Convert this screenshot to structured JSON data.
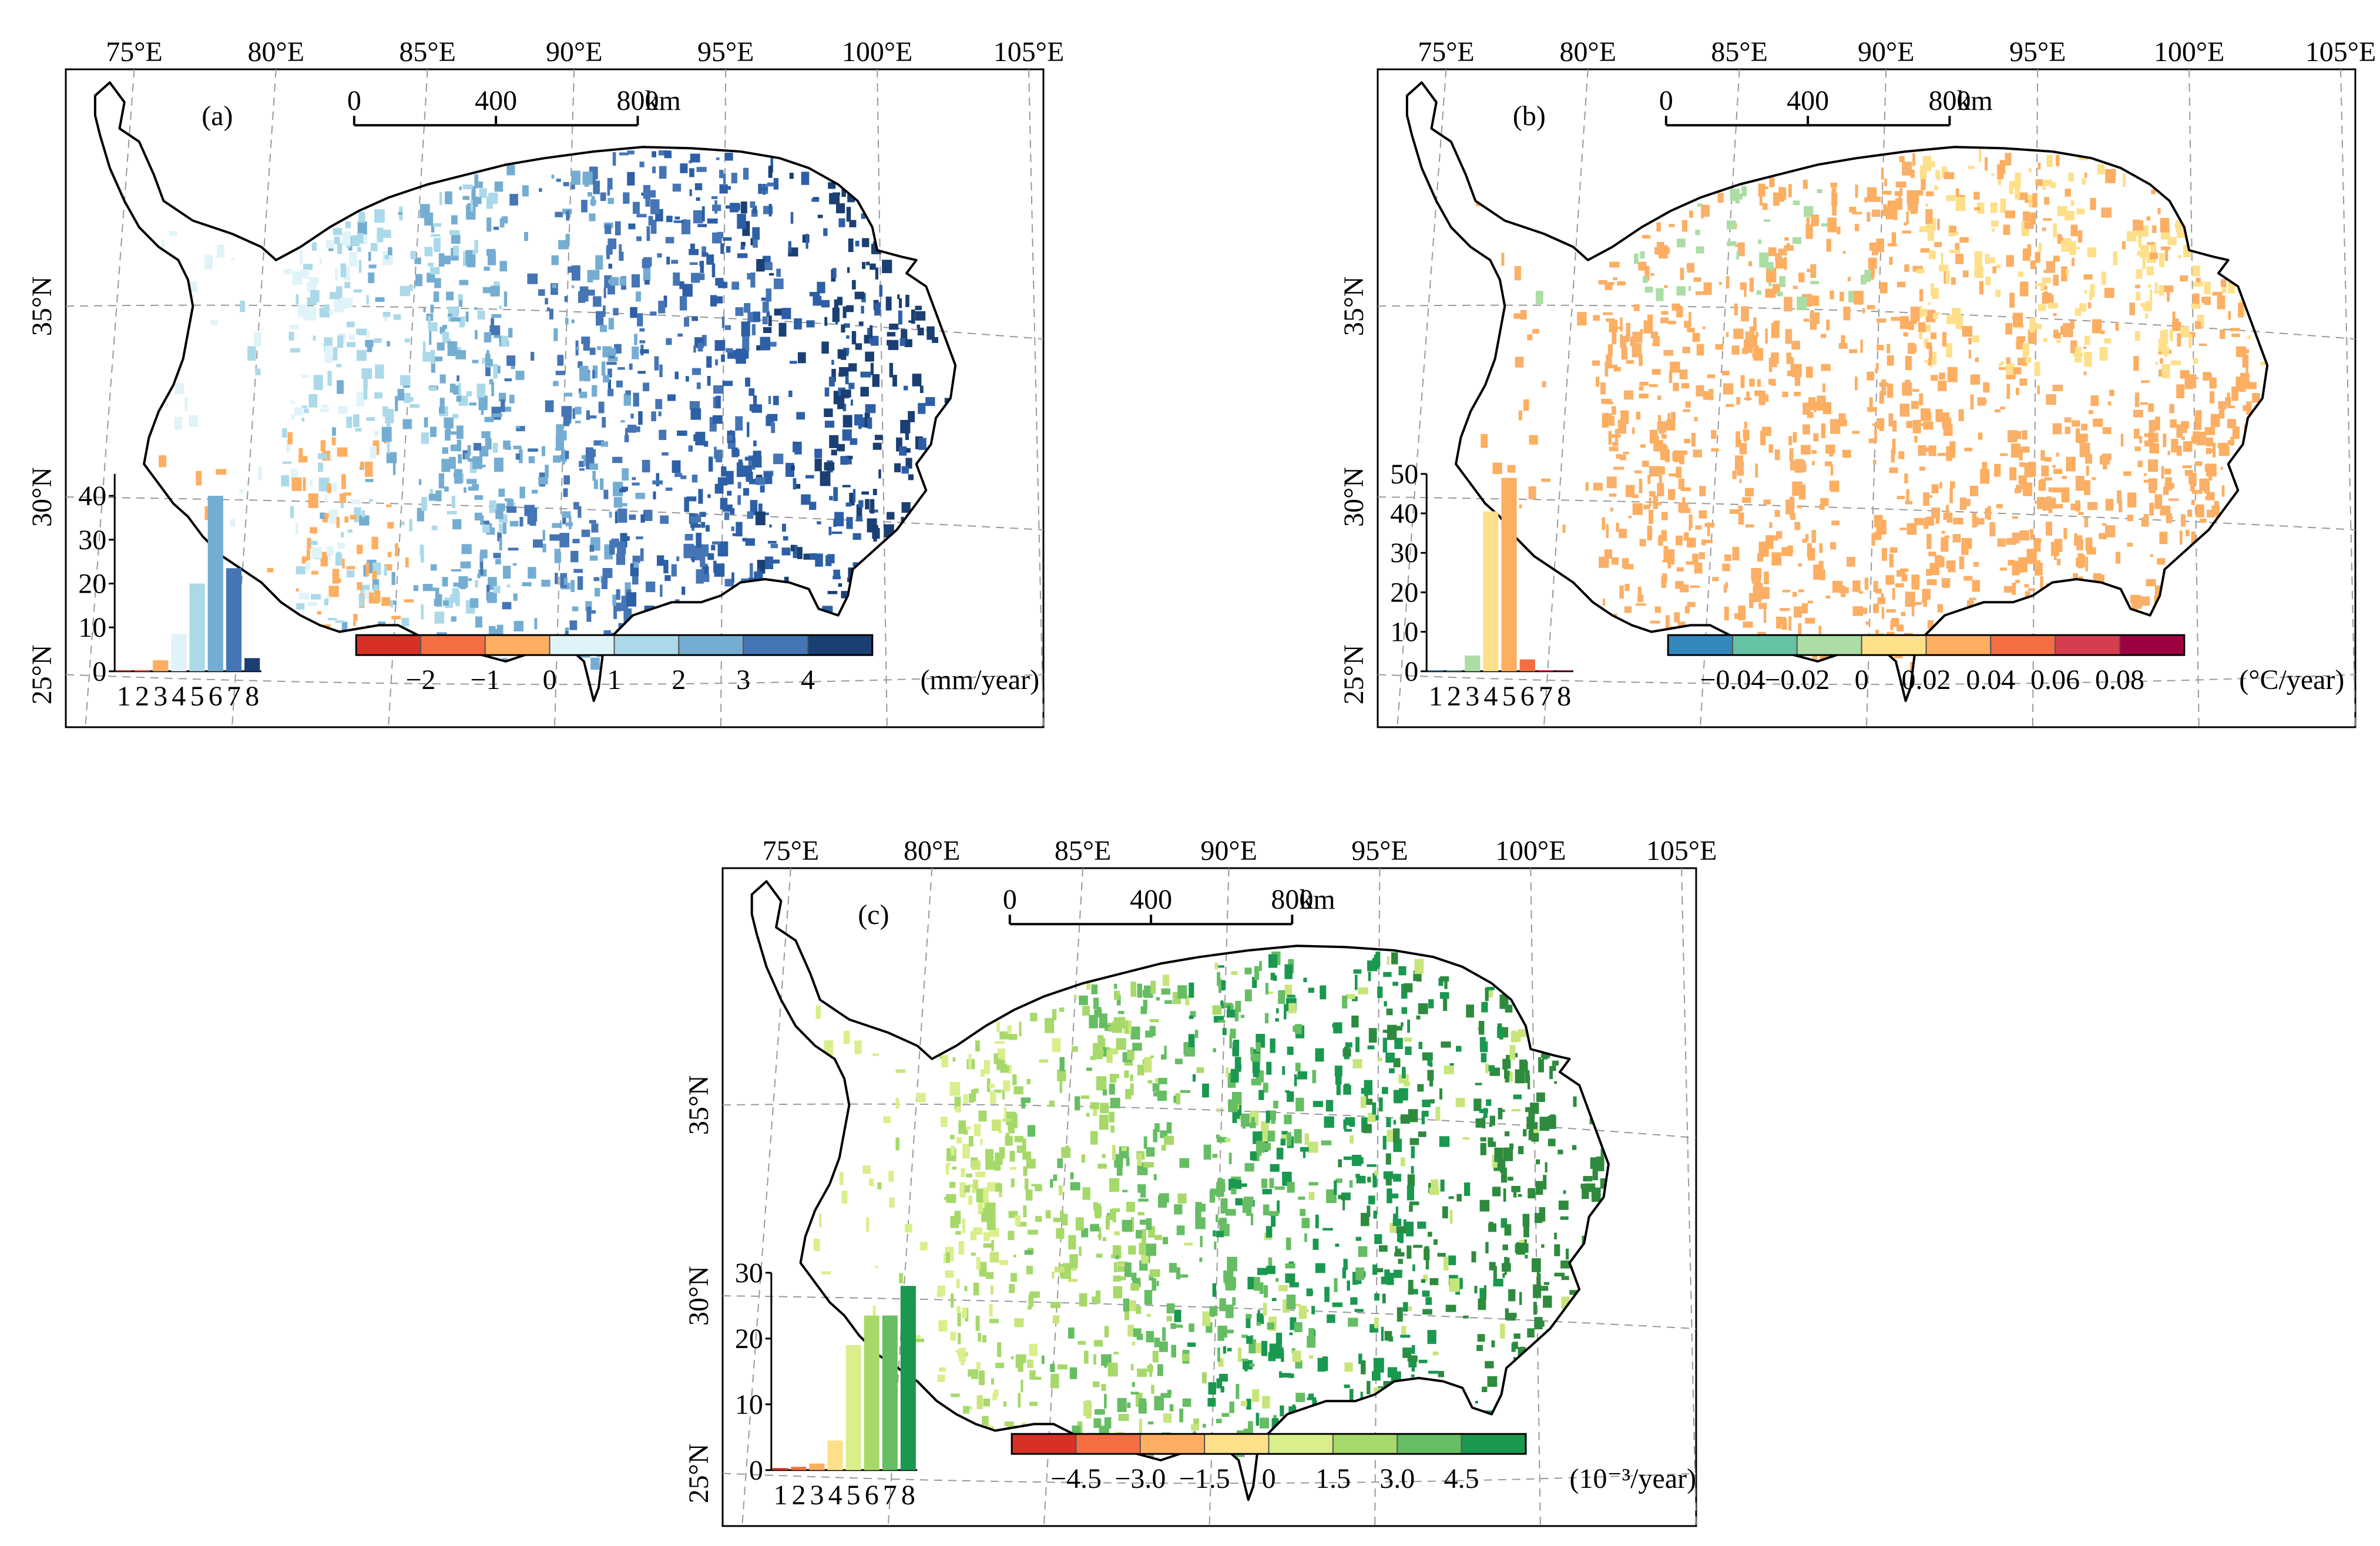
{
  "figure": {
    "panels": [
      {
        "id": "a",
        "panel_label": "(a)",
        "top_lon_labels": [
          "75°E",
          "80°E",
          "85°E",
          "90°E",
          "95°E",
          "100°E",
          "105°E"
        ],
        "left_lat_labels": [
          "35°N",
          "30°N",
          "25°N"
        ],
        "scale_bar": {
          "ticks": [
            "0",
            "400",
            "800"
          ],
          "unit": "km"
        },
        "legend": {
          "colors": [
            "#d73027",
            "#f46d43",
            "#fdae61",
            "#e0f3f8",
            "#abd9e9",
            "#74add1",
            "#4575b4",
            "#1a3f73"
          ],
          "tick_labels": [
            "−2",
            "−1",
            "0",
            "1",
            "2",
            "3",
            "4"
          ],
          "unit": "(mm/year)"
        },
        "map_palette": [
          "#e0f3f8",
          "#abd9e9",
          "#74add1",
          "#4575b4",
          "#2c5fa6",
          "#1a3f73",
          "#fdae61"
        ],
        "chart_data": {
          "type": "bar",
          "categories": [
            "1",
            "2",
            "3",
            "4",
            "5",
            "6",
            "7",
            "8"
          ],
          "values": [
            0.2,
            0.3,
            2.5,
            8.5,
            20,
            40,
            23.5,
            3
          ],
          "colors": [
            "#d73027",
            "#f46d43",
            "#fdae61",
            "#e0f3f8",
            "#abd9e9",
            "#74add1",
            "#4575b4",
            "#1a3f73"
          ],
          "yticks": [
            0,
            10,
            20,
            30,
            40
          ],
          "ylim": [
            0,
            45
          ],
          "xlabel": "",
          "ylabel": "",
          "title": ""
        }
      },
      {
        "id": "b",
        "panel_label": "(b)",
        "top_lon_labels": [
          "75°E",
          "80°E",
          "85°E",
          "90°E",
          "95°E",
          "100°E",
          "105°E"
        ],
        "left_lat_labels": [
          "35°N",
          "30°N",
          "25°N"
        ],
        "scale_bar": {
          "ticks": [
            "0",
            "400",
            "800"
          ],
          "unit": "km"
        },
        "legend": {
          "colors": [
            "#3288bd",
            "#66c2a5",
            "#abdda4",
            "#fee08b",
            "#fdae61",
            "#f46d43",
            "#d53e4f",
            "#9e0142"
          ],
          "tick_labels": [
            "−0.04",
            "−0.02",
            "0",
            "0.02",
            "0.04",
            "0.06",
            "0.08"
          ],
          "unit": "(°C/year)"
        },
        "map_palette": [
          "#fdae61",
          "#fdae61",
          "#f8b06a",
          "#fee08b",
          "#fdbf6f",
          "#abdda4",
          "#f46d43"
        ],
        "chart_data": {
          "type": "bar",
          "categories": [
            "1",
            "2",
            "3",
            "4",
            "5",
            "6",
            "7",
            "8"
          ],
          "values": [
            0.2,
            0.2,
            4,
            40.5,
            49,
            3,
            0.3,
            0.2
          ],
          "colors": [
            "#3288bd",
            "#66c2a5",
            "#abdda4",
            "#fee08b",
            "#fdae61",
            "#f46d43",
            "#d53e4f",
            "#9e0142"
          ],
          "yticks": [
            0,
            10,
            20,
            30,
            40,
            50
          ],
          "ylim": [
            0,
            50
          ],
          "xlabel": "",
          "ylabel": "",
          "title": ""
        }
      },
      {
        "id": "c",
        "panel_label": "(c)",
        "top_lon_labels": [
          "75°E",
          "80°E",
          "85°E",
          "90°E",
          "95°E",
          "100°E",
          "105°E"
        ],
        "left_lat_labels": [
          "35°N",
          "30°N",
          "25°N"
        ],
        "scale_bar": {
          "ticks": [
            "0",
            "400",
            "800"
          ],
          "unit": "km"
        },
        "legend": {
          "colors": [
            "#d73027",
            "#f46d43",
            "#fdae61",
            "#fee08b",
            "#d9ef8b",
            "#a6d96a",
            "#66bd63",
            "#1a9850"
          ],
          "tick_labels": [
            "−4.5",
            "−3.0",
            "−1.5",
            "0",
            "1.5",
            "3.0",
            "4.5"
          ],
          "unit": "(10⁻³/year)"
        },
        "map_palette": [
          "#d9ef8b",
          "#a6d96a",
          "#66bd63",
          "#1a9850",
          "#2e8b3e",
          "#c7e57a",
          "#a6d96a"
        ],
        "chart_data": {
          "type": "bar",
          "categories": [
            "1",
            "2",
            "3",
            "4",
            "5",
            "6",
            "7",
            "8"
          ],
          "values": [
            0.3,
            0.5,
            1,
            4.5,
            19,
            23.5,
            23.5,
            28
          ],
          "colors": [
            "#d73027",
            "#f46d43",
            "#fdae61",
            "#fee08b",
            "#d9ef8b",
            "#a6d96a",
            "#66bd63",
            "#1a9850"
          ],
          "yticks": [
            0,
            10,
            20,
            30
          ],
          "ylim": [
            0,
            30
          ],
          "xlabel": "",
          "ylabel": "",
          "title": ""
        }
      }
    ]
  }
}
